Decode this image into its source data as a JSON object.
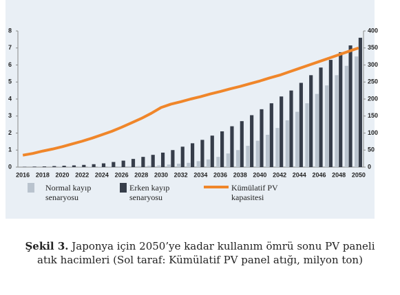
{
  "chart_data": {
    "type": "bar",
    "categories": [
      2016,
      null,
      2018,
      null,
      2020,
      null,
      2022,
      null,
      2024,
      null,
      2026,
      null,
      2028,
      null,
      2030,
      null,
      2032,
      null,
      2034,
      null,
      2036,
      null,
      2038,
      null,
      2040,
      null,
      2042,
      null,
      2044,
      null,
      2046,
      null,
      2048,
      null,
      2050
    ],
    "series": [
      {
        "name": "Normal kayıp senaryosu",
        "type": "bar",
        "color": "#b9c3ce",
        "values": [
          0,
          0,
          0,
          0,
          0.01,
          0.01,
          0.01,
          0.02,
          0.02,
          0.03,
          0.04,
          0.05,
          0.06,
          0.08,
          0.1,
          0.15,
          0.2,
          0.25,
          0.35,
          0.45,
          0.6,
          0.8,
          1.0,
          1.25,
          1.55,
          1.9,
          2.3,
          2.75,
          3.25,
          3.75,
          4.3,
          4.8,
          5.4,
          5.95,
          6.5
        ]
      },
      {
        "name": "Erken kayıp senaryosu",
        "type": "bar",
        "color": "#363d4a",
        "values": [
          0.02,
          0.03,
          0.04,
          0.06,
          0.08,
          0.1,
          0.13,
          0.17,
          0.22,
          0.3,
          0.38,
          0.48,
          0.6,
          0.72,
          0.85,
          1.0,
          1.2,
          1.4,
          1.6,
          1.85,
          2.1,
          2.4,
          2.7,
          3.05,
          3.4,
          3.75,
          4.15,
          4.5,
          4.95,
          5.4,
          5.85,
          6.3,
          6.75,
          7.15,
          7.6
        ]
      },
      {
        "name": "Kümülatif PV kapasitesi",
        "type": "line",
        "axis": "y2",
        "color": "#f0862a",
        "values": [
          35,
          40,
          47,
          53,
          60,
          68,
          76,
          85,
          95,
          105,
          117,
          130,
          143,
          158,
          175,
          185,
          192,
          200,
          207,
          215,
          222,
          230,
          237,
          245,
          253,
          262,
          270,
          280,
          290,
          300,
          310,
          320,
          330,
          340,
          350
        ]
      }
    ],
    "ylim": [
      0,
      8
    ],
    "yticks": [
      0,
      1,
      2,
      3,
      4,
      5,
      6,
      7,
      8
    ],
    "y2lim": [
      0,
      400
    ],
    "y2ticks": [
      0,
      50,
      100,
      150,
      200,
      250,
      300,
      350,
      400
    ],
    "grid": false
  },
  "figure_caption": {
    "label": "Şekil 3.",
    "text": "Japonya için 2050’ye kadar kullanım ömrü sonu PV paneli atık hacimleri (Sol taraf: Kümülatif PV panel atığı, milyon ton)"
  }
}
